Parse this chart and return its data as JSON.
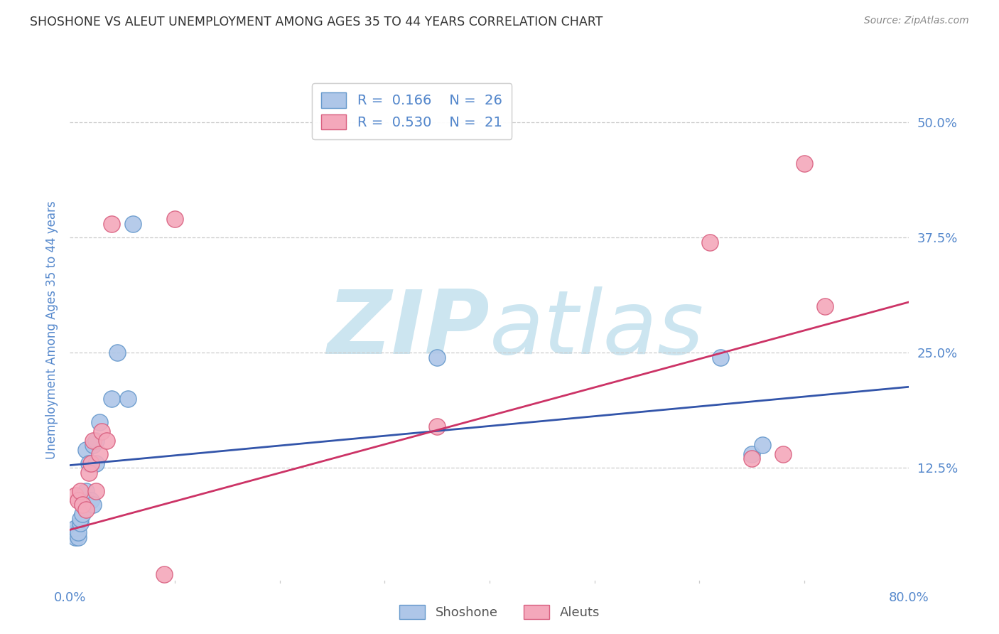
{
  "title": "SHOSHONE VS ALEUT UNEMPLOYMENT AMONG AGES 35 TO 44 YEARS CORRELATION CHART",
  "source": "Source: ZipAtlas.com",
  "ylabel": "Unemployment Among Ages 35 to 44 years",
  "xlim": [
    0.0,
    0.8
  ],
  "ylim": [
    0.0,
    0.55
  ],
  "xticks": [
    0.0,
    0.1,
    0.2,
    0.3,
    0.4,
    0.5,
    0.6,
    0.7,
    0.8
  ],
  "xticklabels": [
    "0.0%",
    "",
    "",
    "",
    "",
    "",
    "",
    "",
    "80.0%"
  ],
  "yticks": [
    0.125,
    0.25,
    0.375,
    0.5
  ],
  "yticklabels": [
    "12.5%",
    "25.0%",
    "37.5%",
    "50.0%"
  ],
  "grid_color": "#cccccc",
  "background_color": "#ffffff",
  "watermark_zip": "ZIP",
  "watermark_atlas": "atlas",
  "watermark_color": "#cce5f0",
  "shoshone_color": "#aec6e8",
  "shoshone_edge_color": "#6699cc",
  "aleut_color": "#f4a8bb",
  "aleut_edge_color": "#d96080",
  "shoshone_line_color": "#3355aa",
  "aleut_line_color": "#cc3366",
  "shoshone_R": "0.166",
  "shoshone_N": "26",
  "aleut_R": "0.530",
  "aleut_N": "21",
  "shoshone_scatter_x": [
    0.005,
    0.005,
    0.005,
    0.008,
    0.008,
    0.01,
    0.01,
    0.012,
    0.012,
    0.015,
    0.015,
    0.018,
    0.02,
    0.022,
    0.022,
    0.025,
    0.025,
    0.028,
    0.04,
    0.045,
    0.055,
    0.06,
    0.35,
    0.62,
    0.65,
    0.66
  ],
  "shoshone_scatter_y": [
    0.05,
    0.055,
    0.06,
    0.05,
    0.055,
    0.065,
    0.07,
    0.075,
    0.095,
    0.1,
    0.145,
    0.13,
    0.09,
    0.085,
    0.15,
    0.13,
    0.155,
    0.175,
    0.2,
    0.25,
    0.2,
    0.39,
    0.245,
    0.245,
    0.14,
    0.15
  ],
  "aleut_scatter_x": [
    0.005,
    0.008,
    0.01,
    0.012,
    0.015,
    0.018,
    0.02,
    0.022,
    0.025,
    0.028,
    0.03,
    0.035,
    0.04,
    0.09,
    0.1,
    0.35,
    0.61,
    0.65,
    0.68,
    0.7,
    0.72
  ],
  "aleut_scatter_y": [
    0.095,
    0.09,
    0.1,
    0.085,
    0.08,
    0.12,
    0.13,
    0.155,
    0.1,
    0.14,
    0.165,
    0.155,
    0.39,
    0.01,
    0.395,
    0.17,
    0.37,
    0.135,
    0.14,
    0.455,
    0.3
  ],
  "shoshone_line_x": [
    0.0,
    0.8
  ],
  "shoshone_line_y": [
    0.128,
    0.213
  ],
  "aleut_line_x": [
    0.0,
    0.8
  ],
  "aleut_line_y": [
    0.058,
    0.305
  ],
  "tick_color": "#5588cc",
  "axis_label_color": "#5588cc",
  "title_color": "#333333",
  "legend_text_color": "#333333",
  "bottom_legend_color": "#555555"
}
